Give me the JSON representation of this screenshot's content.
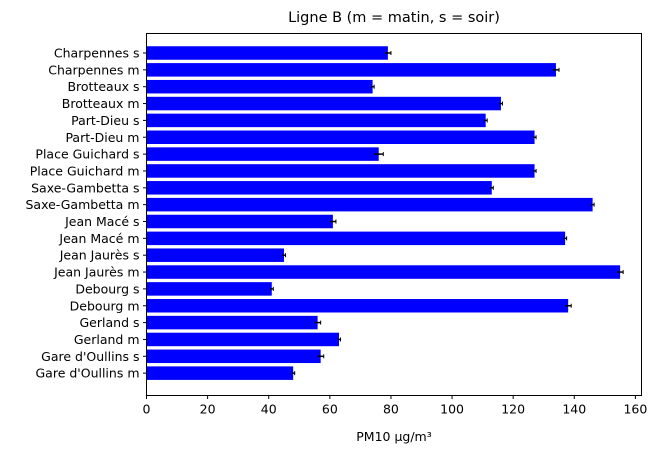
{
  "chart_data": {
    "type": "bar",
    "orientation": "horizontal",
    "title": "Ligne B (m = matin, s = soir)",
    "xlabel": "PM10 µg/m³",
    "ylabel": "",
    "xlim": [
      0,
      162
    ],
    "xticks": [
      0,
      20,
      40,
      60,
      80,
      100,
      120,
      140,
      160
    ],
    "grid": false,
    "bar_color": "#0000ff",
    "error_color": "#000000",
    "categories": [
      "Charpennes s",
      "Charpennes m",
      "Brotteaux s",
      "Brotteaux m",
      "Part-Dieu s",
      "Part-Dieu m",
      "Place Guichard s",
      "Place Guichard m",
      "Saxe-Gambetta s",
      "Saxe-Gambetta m",
      "Jean Macé s",
      "Jean Macé m",
      "Jean Jaurès s",
      "Jean Jaurès m",
      "Debourg s",
      "Debourg m",
      "Gerland s",
      "Gerland m",
      "Gare d'Oullins s",
      "Gare d'Oullins m"
    ],
    "values": [
      79,
      134,
      74,
      116,
      111,
      127,
      76,
      127,
      113,
      146,
      61,
      137,
      45,
      155,
      41,
      138,
      56,
      63,
      57,
      48
    ],
    "errors": [
      1,
      1,
      0.5,
      0.5,
      0.5,
      0.5,
      1.5,
      0.5,
      0.5,
      0.5,
      1,
      0.5,
      0.5,
      1,
      0.5,
      1,
      1,
      0.5,
      1,
      0.5
    ]
  }
}
